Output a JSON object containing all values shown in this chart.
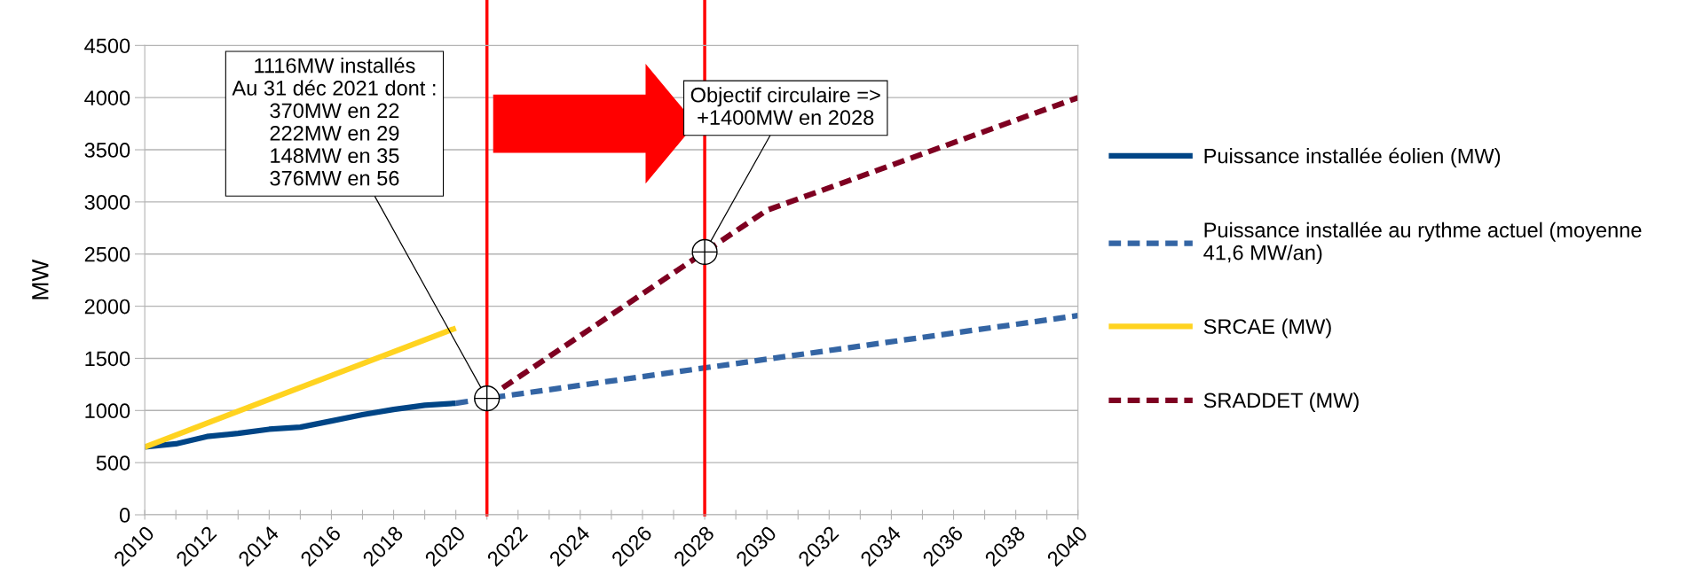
{
  "chart_data": {
    "type": "line",
    "ylabel": "MW",
    "xlim": [
      2010,
      2040
    ],
    "xticks": [
      2010,
      {
        "value": 2011,
        "label": null
      },
      2012,
      {
        "value": 2013,
        "label": null
      },
      2014,
      {
        "value": 2015,
        "label": null
      },
      2016,
      {
        "value": 2017,
        "label": null
      },
      2018,
      {
        "value": 2019,
        "label": null
      },
      2020,
      {
        "value": 2021,
        "label": null
      },
      2022,
      {
        "value": 2023,
        "label": null
      },
      2024,
      {
        "value": 2025,
        "label": null
      },
      2026,
      {
        "value": 2027,
        "label": null
      },
      2028,
      {
        "value": 2029,
        "label": null
      },
      2030,
      {
        "value": 2031,
        "label": null
      },
      2032,
      {
        "value": 2033,
        "label": null
      },
      2034,
      {
        "value": 2035,
        "label": null
      },
      2036,
      {
        "value": 2037,
        "label": null
      },
      2038,
      {
        "value": 2039,
        "label": null
      },
      2040
    ],
    "ylim": [
      0,
      4500
    ],
    "yticks": [
      0,
      500,
      1000,
      1500,
      2000,
      2500,
      3000,
      3500,
      4000,
      4500
    ],
    "grid": "y",
    "legend": "right",
    "marker": "none",
    "series": [
      {
        "name": "Puissance installée éolien (MW)",
        "color": "#004586",
        "line_style": "solid",
        "x": [
          2010,
          2011,
          2012,
          2013,
          2014,
          2015,
          2016,
          2017,
          2018,
          2019,
          2020
        ],
        "values": [
          650,
          680,
          750,
          780,
          820,
          840,
          900,
          960,
          1010,
          1050,
          1070
        ]
      },
      {
        "name": "Puissance installée au rythme actuel (moyenne\n41,6 MW/an)",
        "color": "#3465a4",
        "line_style": "dashed",
        "x": [
          2020,
          2021,
          2040
        ],
        "values": [
          1070,
          1116,
          1910
        ]
      },
      {
        "name": "SRCAE (MW)",
        "color": "#ffd320",
        "line_style": "solid",
        "x": [
          2010,
          2020
        ],
        "values": [
          650,
          1790
        ]
      },
      {
        "name": "SRADDET (MW)",
        "color": "#7e0021",
        "line_style": "dashed",
        "x": [
          2021,
          2028,
          2030,
          2040
        ],
        "values": [
          1116,
          2520,
          2920,
          4000
        ]
      }
    ],
    "ref_lines": [
      {
        "axis": "x",
        "value": 2021,
        "color": "#ff0000"
      },
      {
        "axis": "x",
        "value": 2028,
        "color": "#ff0000"
      }
    ],
    "annotations": [
      {
        "text": "1116MW installés\nAu 31 déc 2021 dont :\n370MW en 22\n222MW en 29\n148MW en 35\n376MW en 56",
        "x": 2021,
        "y": 1116
      },
      {
        "text": "Objectif circulaire =>\n+1400MW en 2028",
        "x": 2028,
        "y": 2520
      }
    ]
  }
}
